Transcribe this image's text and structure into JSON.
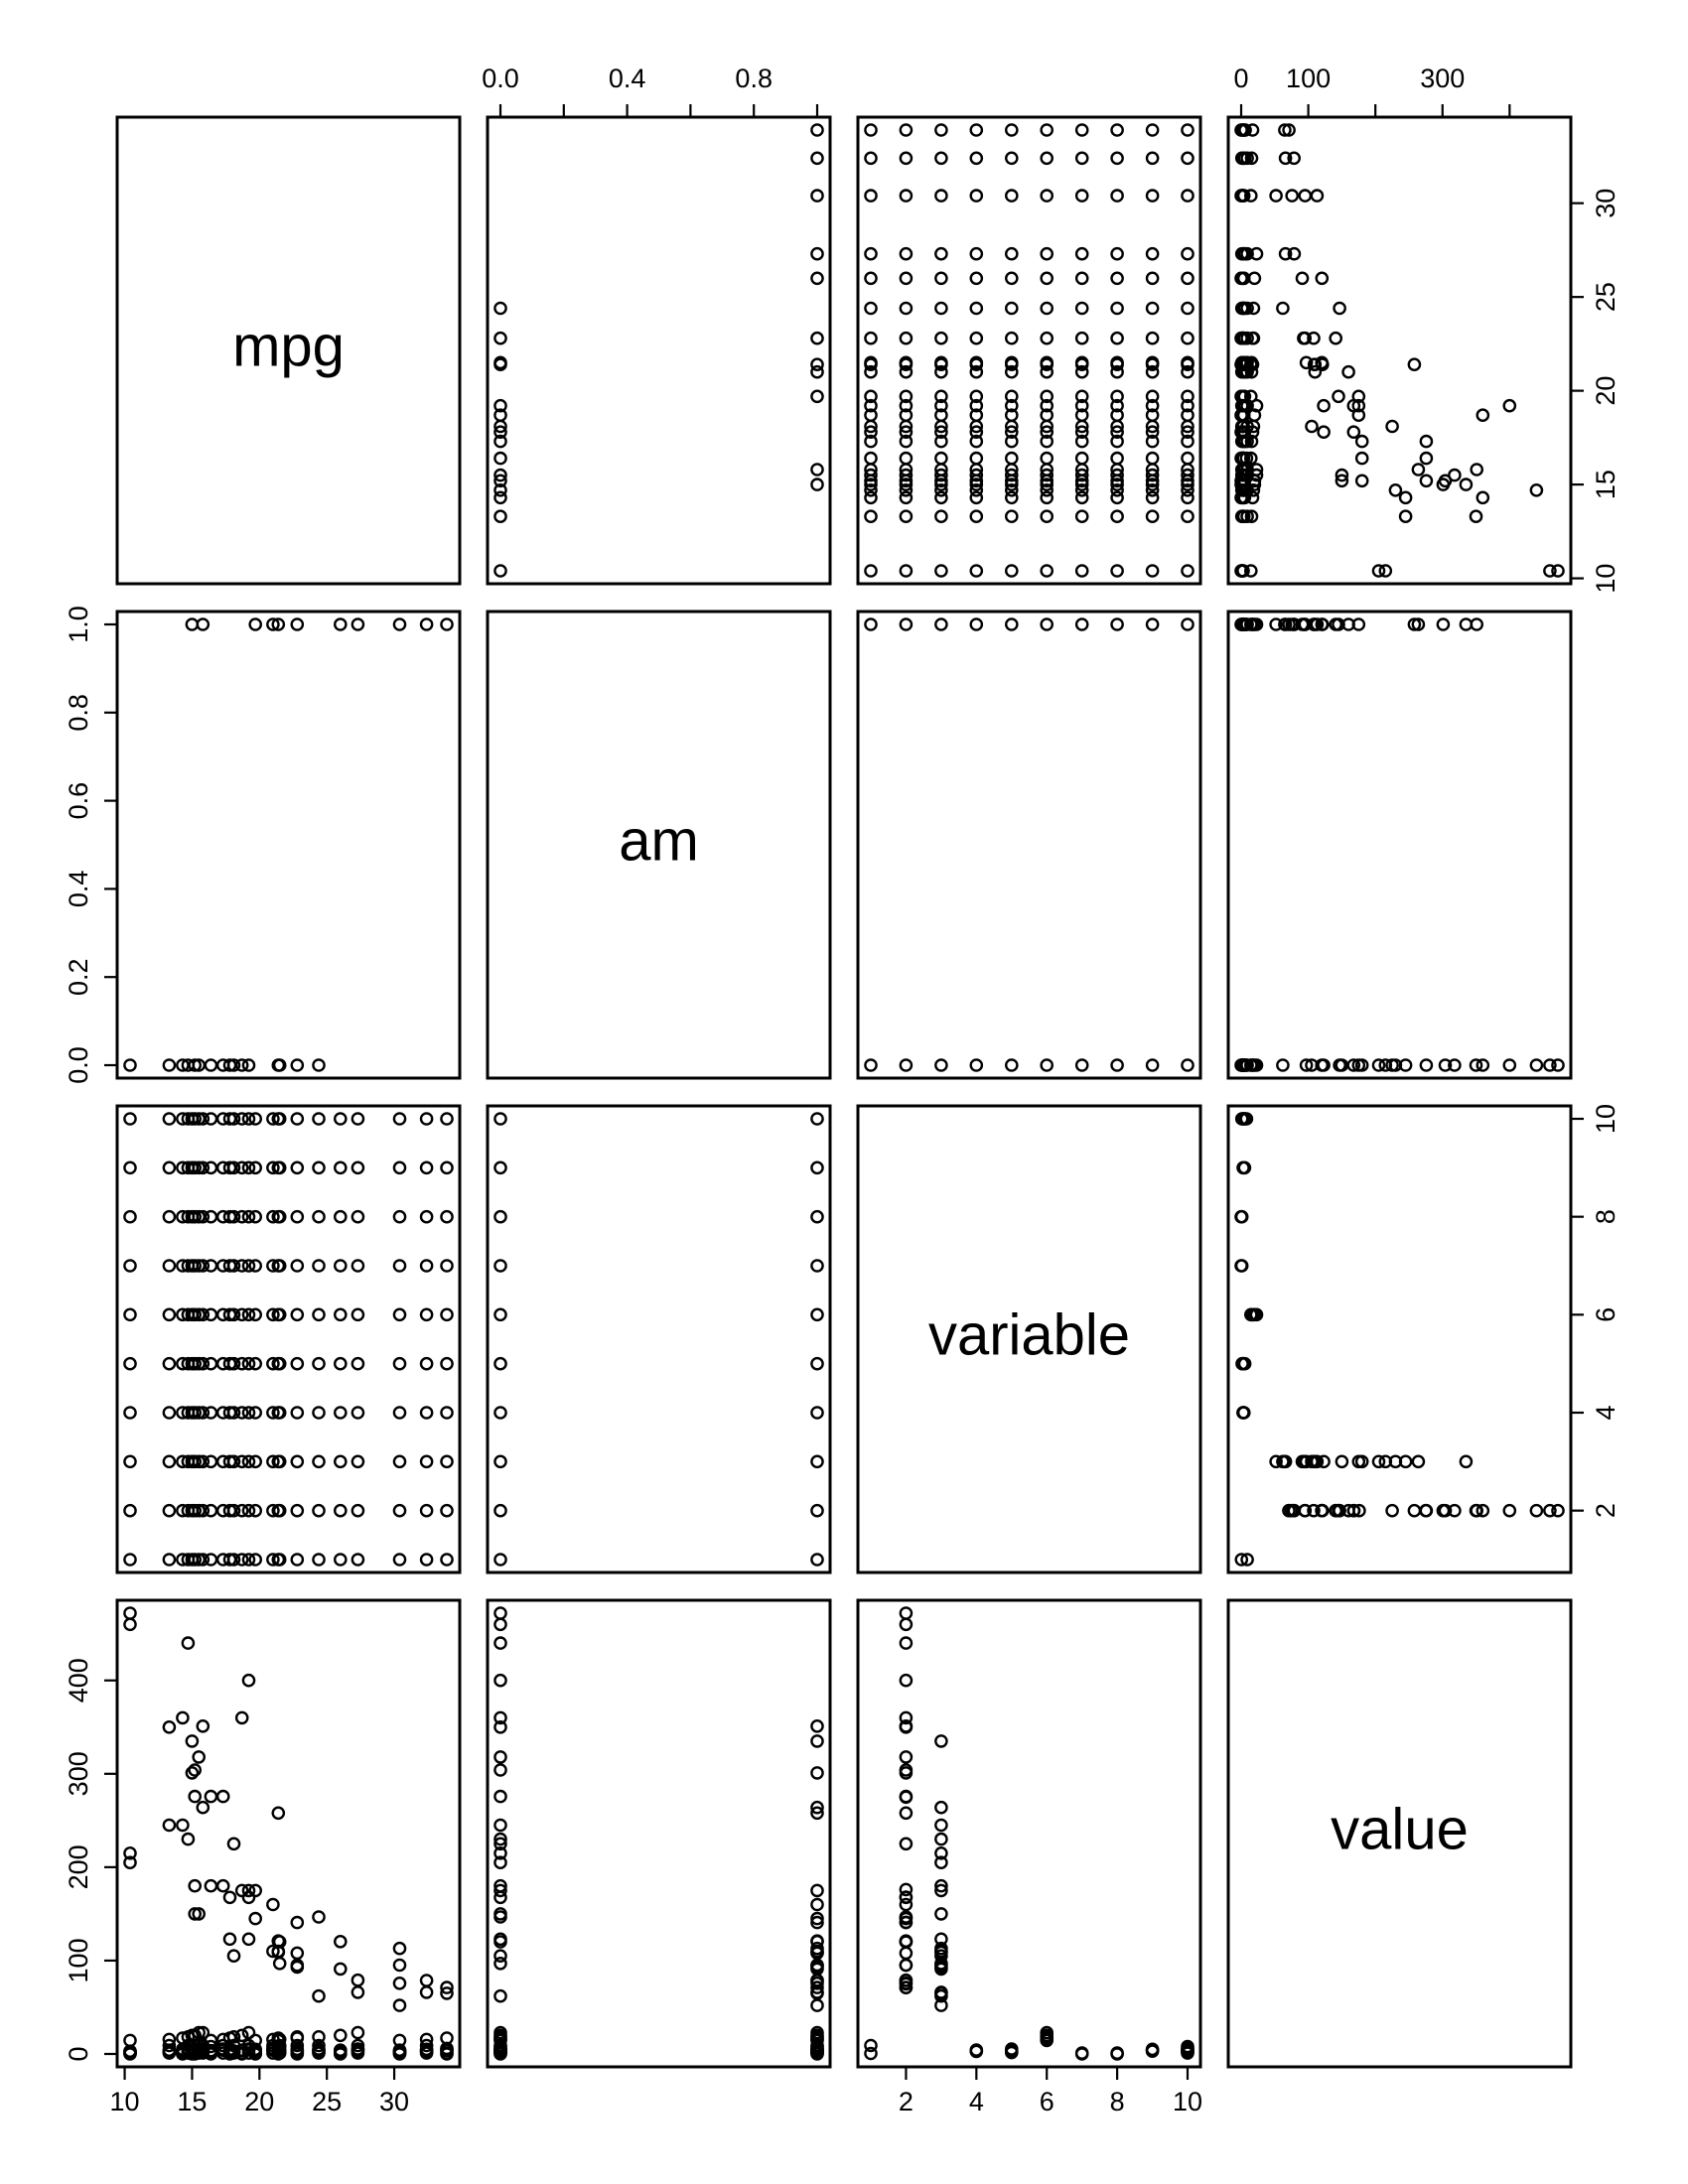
{
  "chart_data": {
    "type": "scatter",
    "layout": "scatterplot-matrix",
    "title": "",
    "variables": [
      "mpg",
      "am",
      "variable",
      "value"
    ],
    "diagonal_labels": [
      "mpg",
      "am",
      "variable",
      "value"
    ],
    "axes": {
      "mpg": {
        "range": [
          10.4,
          33.9
        ],
        "ticks": [
          10,
          15,
          20,
          25,
          30
        ],
        "tick_labels": [
          "10",
          "15",
          "20",
          "25",
          "30"
        ]
      },
      "am": {
        "range": [
          0,
          1
        ],
        "ticks": [
          0.0,
          0.2,
          0.4,
          0.6,
          0.8,
          1.0
        ],
        "tick_labels": [
          "0.0",
          "0.2",
          "0.4",
          "0.6",
          "0.8",
          "1.0"
        ],
        "top_ticks": [
          0.0,
          0.2,
          0.4,
          0.6,
          0.8,
          1.0
        ],
        "top_tick_labels": [
          "0.0",
          "",
          "0.4",
          "",
          "0.8",
          ""
        ]
      },
      "variable": {
        "range": [
          1,
          10
        ],
        "ticks": [
          2,
          4,
          6,
          8,
          10
        ],
        "tick_labels": [
          "2",
          "4",
          "6",
          "8",
          "10"
        ]
      },
      "value": {
        "range": [
          0,
          472
        ],
        "ticks": [
          0,
          100,
          200,
          300,
          400
        ],
        "tick_labels": [
          "0",
          "100",
          "200",
          "300",
          "400"
        ],
        "top_ticks": [
          0,
          100,
          200,
          300,
          400
        ],
        "top_tick_labels": [
          "0",
          "100",
          "",
          "300",
          ""
        ]
      }
    },
    "axis_placement": {
      "bottom": [
        "mpg",
        "",
        "variable",
        ""
      ],
      "top": [
        "",
        "am",
        "",
        "value"
      ],
      "left": [
        "",
        "am",
        "",
        "value"
      ],
      "right": [
        "mpg",
        "",
        "variable",
        ""
      ]
    },
    "variable_levels": [
      1,
      2,
      3,
      4,
      5,
      6,
      7,
      8,
      9,
      10
    ],
    "mpg_by_am": {
      "am_0": [
        10.4,
        13.3,
        14.3,
        14.7,
        15.2,
        15.5,
        16.4,
        17.3,
        17.8,
        18.1,
        18.7,
        19.2,
        21.4,
        21.5,
        22.8,
        24.4
      ],
      "am_1": [
        15.0,
        15.8,
        19.7,
        21.0,
        21.4,
        22.8,
        26.0,
        27.3,
        30.4,
        32.4,
        33.9
      ]
    },
    "value_by_variable": {
      "1": [
        0.5,
        9
      ],
      "2": [
        71,
        75,
        79,
        95,
        108,
        120,
        121,
        141,
        146,
        160,
        168,
        176,
        225,
        258,
        275,
        301,
        304,
        318,
        350,
        351,
        360,
        400,
        440,
        460,
        472
      ],
      "3": [
        52,
        62,
        66,
        93,
        97,
        105,
        109,
        110,
        113,
        123,
        150,
        175,
        180,
        205,
        215,
        230,
        245,
        264,
        335
      ],
      "4": [
        2.8,
        3.1,
        3.5,
        4.2
      ],
      "5": [
        1.5,
        2.2,
        3.2,
        5.3
      ],
      "6": [
        14.5,
        15.5,
        17.0,
        18.3,
        19.9,
        22.9
      ],
      "7": [
        0,
        1
      ],
      "8": [
        0,
        1
      ],
      "9": [
        3,
        4,
        5
      ],
      "10": [
        1,
        2,
        3,
        4,
        5,
        6,
        8
      ]
    },
    "mpg_vs_value_observations": [
      [
        21.0,
        160,
        110
      ],
      [
        22.8,
        108,
        93
      ],
      [
        21.4,
        258,
        110
      ],
      [
        18.7,
        360,
        175
      ],
      [
        18.1,
        225,
        105
      ],
      [
        14.3,
        360,
        245
      ],
      [
        24.4,
        146.7,
        62
      ],
      [
        22.8,
        140.8,
        95
      ],
      [
        19.2,
        167.6,
        123
      ],
      [
        17.8,
        167.6,
        123
      ],
      [
        16.4,
        275.8,
        180
      ],
      [
        17.3,
        275.8,
        180
      ],
      [
        15.2,
        275.8,
        180
      ],
      [
        10.4,
        472,
        205
      ],
      [
        10.4,
        460,
        215
      ],
      [
        14.7,
        440,
        230
      ],
      [
        32.4,
        78.7,
        66
      ],
      [
        30.4,
        75.7,
        52
      ],
      [
        33.9,
        71.1,
        65
      ],
      [
        21.5,
        120.1,
        97
      ],
      [
        15.5,
        318,
        150
      ],
      [
        15.2,
        304,
        150
      ],
      [
        13.3,
        350,
        245
      ],
      [
        19.2,
        400,
        175
      ],
      [
        27.3,
        79,
        66
      ],
      [
        26.0,
        120.3,
        91
      ],
      [
        30.4,
        95.1,
        113
      ],
      [
        15.8,
        351,
        264
      ],
      [
        19.7,
        145,
        175
      ],
      [
        15.0,
        301,
        335
      ],
      [
        21.4,
        121,
        109
      ]
    ],
    "panels": [
      {
        "row": "mpg",
        "col": "am"
      },
      {
        "row": "mpg",
        "col": "variable"
      },
      {
        "row": "mpg",
        "col": "value"
      },
      {
        "row": "am",
        "col": "mpg"
      },
      {
        "row": "am",
        "col": "variable"
      },
      {
        "row": "am",
        "col": "value"
      },
      {
        "row": "variable",
        "col": "mpg"
      },
      {
        "row": "variable",
        "col": "am"
      },
      {
        "row": "variable",
        "col": "value"
      },
      {
        "row": "value",
        "col": "mpg"
      },
      {
        "row": "value",
        "col": "am"
      },
      {
        "row": "value",
        "col": "variable"
      }
    ],
    "grid": false,
    "legend": "none"
  }
}
